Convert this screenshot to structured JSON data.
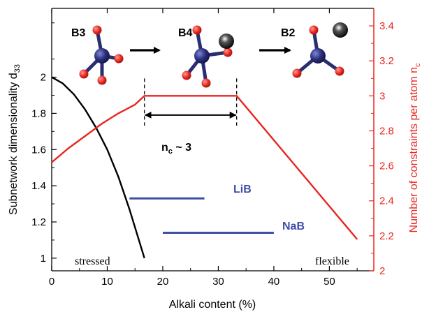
{
  "chart_data": {
    "type": "line",
    "xlabel": "Alkali content (%)",
    "ylabel": "Subnetwork dimensionality d",
    "ylabel_sub": "33",
    "y2label": "Number of constraints per atom n",
    "y2label_sub": "c",
    "xlim": [
      0,
      58
    ],
    "ylim": [
      0.93,
      2.38
    ],
    "y2lim": [
      2.0,
      3.5
    ],
    "x_ticks": [
      0,
      10,
      20,
      30,
      40,
      50
    ],
    "y_ticks": [
      1,
      1.2,
      1.4,
      1.6,
      1.8,
      2
    ],
    "y2_ticks": [
      2,
      2.2,
      2.4,
      2.6,
      2.8,
      3,
      3.2,
      3.4
    ],
    "grid": false,
    "colors": {
      "left_axis": "#000000",
      "right_axis": "#e8261f",
      "blue": "#3f4fa8",
      "atom_center": "#2c2f7a",
      "atom_red": "#e8261f",
      "bond": "#2a2d6e"
    },
    "series": [
      {
        "axis": "left",
        "color": "#000000",
        "x": [
          0,
          2,
          4,
          6,
          8,
          10,
          12,
          14,
          16.7
        ],
        "y": [
          2.0,
          1.965,
          1.905,
          1.822,
          1.72,
          1.6,
          1.45,
          1.27,
          1.0
        ]
      },
      {
        "axis": "right",
        "color": "#e8261f",
        "x": [
          0,
          3,
          6,
          9,
          12,
          15,
          16.7,
          33.3,
          55
        ],
        "y": [
          2.62,
          2.7,
          2.77,
          2.84,
          2.9,
          2.95,
          3.0,
          3.0,
          2.18
        ]
      },
      {
        "name": "LiB",
        "axis": "left",
        "color": "#3f4fa8",
        "x": [
          14,
          27.5
        ],
        "y": [
          1.33,
          1.33
        ]
      },
      {
        "name": "NaB",
        "axis": "left",
        "color": "#3f4fa8",
        "x": [
          20,
          40
        ],
        "y": [
          1.14,
          1.14
        ]
      }
    ],
    "annotations": {
      "structures": [
        "B3",
        "B4",
        "B2"
      ],
      "nc_text_main": "n",
      "nc_text_sub": "c",
      "nc_text_tail": " ~ 3",
      "nc_range": [
        16.7,
        33.3
      ],
      "stressed": "stressed",
      "flexible": "flexible"
    }
  }
}
